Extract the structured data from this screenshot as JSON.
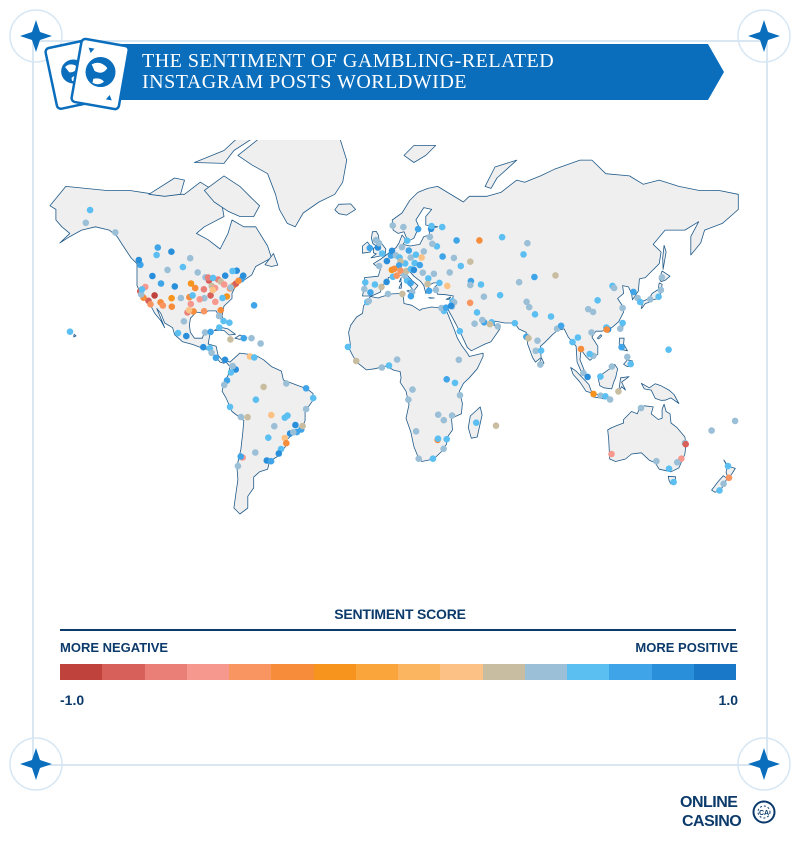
{
  "title": {
    "line1": "THE SENTIMENT OF GAMBLING-RELATED",
    "line2": "INSTAGRAM POSTS WORLDWIDE"
  },
  "legend": {
    "title": "SENTIMENT SCORE",
    "negative_label": "MORE NEGATIVE",
    "positive_label": "MORE POSITIVE",
    "min_label": "-1.0",
    "max_label": "1.0",
    "colors": [
      "#c0423d",
      "#d8605a",
      "#ea7f78",
      "#f7988f",
      "#f99560",
      "#f78c3a",
      "#f7941e",
      "#f9a53c",
      "#fbb560",
      "#fcc285",
      "#c8bda0",
      "#9bbfd6",
      "#5cbff2",
      "#3fa5e8",
      "#2a8fdb",
      "#1a78c9"
    ]
  },
  "colors": {
    "brand_blue": "#0a6ebd",
    "dark_blue": "#0b3a6b",
    "land": "#f0f0f0",
    "border": "#1f5a8a"
  },
  "logo": {
    "line1": "ONLINE",
    "line2": "CASINO",
    "badge": "CA"
  },
  "points": [
    [
      -122.4,
      37.8,
      -0.8
    ],
    [
      -118.2,
      34.1,
      -0.9
    ],
    [
      -117.2,
      32.7,
      -0.5
    ],
    [
      -115.1,
      36.2,
      -0.95
    ],
    [
      -112.1,
      33.5,
      -0.4
    ],
    [
      -104.9,
      39.7,
      0.8
    ],
    [
      -122.3,
      47.6,
      0.7
    ],
    [
      -123.1,
      49.3,
      0.9
    ],
    [
      -114.1,
      51.0,
      0.6
    ],
    [
      -113.5,
      53.5,
      0.7
    ],
    [
      -97.1,
      49.9,
      0.5
    ],
    [
      -106.6,
      52.1,
      0.8
    ],
    [
      -96.8,
      32.8,
      -0.6
    ],
    [
      -95.4,
      29.8,
      -0.3
    ],
    [
      -98.5,
      29.4,
      -0.7
    ],
    [
      -97.7,
      30.3,
      0.2
    ],
    [
      -90.1,
      29.9,
      -0.5
    ],
    [
      -84.4,
      33.7,
      -0.6
    ],
    [
      -80.2,
      25.8,
      0.6
    ],
    [
      -81.7,
      30.3,
      -0.3
    ],
    [
      -82.5,
      27.9,
      0.4
    ],
    [
      -86.8,
      36.2,
      -0.8
    ],
    [
      -90.0,
      35.1,
      0.5
    ],
    [
      -87.6,
      41.9,
      -0.9
    ],
    [
      -83.0,
      42.3,
      -0.7
    ],
    [
      -81.7,
      41.5,
      0.3
    ],
    [
      -79.9,
      40.4,
      -0.6
    ],
    [
      -75.2,
      40.0,
      -0.4
    ],
    [
      -74.0,
      40.7,
      -0.8
    ],
    [
      -71.1,
      42.4,
      0.7
    ],
    [
      -77.0,
      38.9,
      -0.5
    ],
    [
      -76.6,
      39.3,
      0.4
    ],
    [
      -78.6,
      35.8,
      -0.2
    ],
    [
      -80.8,
      35.2,
      0.6
    ],
    [
      -79.4,
      43.7,
      0.8
    ],
    [
      -73.6,
      45.5,
      0.9
    ],
    [
      -75.7,
      45.4,
      0.6
    ],
    [
      -93.3,
      44.9,
      0.5
    ],
    [
      -94.6,
      39.1,
      -0.4
    ],
    [
      -90.2,
      38.6,
      -0.7
    ],
    [
      -86.2,
      39.8,
      0.3
    ],
    [
      -84.5,
      39.1,
      -0.6
    ],
    [
      -85.7,
      38.3,
      0.2
    ],
    [
      -97.5,
      35.5,
      -0.3
    ],
    [
      -95.9,
      36.2,
      0.6
    ],
    [
      -101.8,
      35.2,
      0.4
    ],
    [
      -106.5,
      35.1,
      -0.2
    ],
    [
      -111.9,
      40.8,
      0.7
    ],
    [
      -116.2,
      43.6,
      0.8
    ],
    [
      -119.8,
      39.5,
      -0.6
    ],
    [
      -120.7,
      35.3,
      -0.3
    ],
    [
      -121.9,
      36.6,
      0.5
    ],
    [
      -121.5,
      38.6,
      0.6
    ],
    [
      -110.9,
      32.2,
      -0.5
    ],
    [
      -108.6,
      45.8,
      0.4
    ],
    [
      -100.8,
      46.8,
      0.6
    ],
    [
      -96.7,
      40.8,
      -0.2
    ],
    [
      -92.3,
      34.7,
      -0.6
    ],
    [
      -89.4,
      43.1,
      0.5
    ],
    [
      -88.0,
      43.0,
      -0.7
    ],
    [
      -85.6,
      42.9,
      0.6
    ],
    [
      -72.7,
      41.8,
      -0.3
    ],
    [
      -70.3,
      43.7,
      0.8
    ],
    [
      -64.8,
      32.3,
      0.7
    ],
    [
      -66.1,
      18.5,
      0.5
    ],
    [
      -77.3,
      25.1,
      0.6
    ],
    [
      -82.4,
      23.1,
      0.6
    ],
    [
      -76.8,
      18.0,
      0.3
    ],
    [
      -70.0,
      18.5,
      0.7
    ],
    [
      -61.5,
      16.2,
      0.4
    ],
    [
      -99.1,
      19.4,
      0.8
    ],
    [
      -103.3,
      20.7,
      0.6
    ],
    [
      -100.3,
      25.7,
      0.5
    ],
    [
      -106.4,
      31.7,
      -0.4
    ],
    [
      -89.6,
      21.0,
      0.5
    ],
    [
      -86.8,
      21.2,
      0.7
    ],
    [
      -90.5,
      14.6,
      0.8
    ],
    [
      -87.2,
      14.1,
      0.6
    ],
    [
      -84.1,
      9.9,
      0.7
    ],
    [
      -79.5,
      9.0,
      0.8
    ],
    [
      -86.3,
      12.1,
      0.5
    ],
    [
      -74.1,
      4.7,
      0.8
    ],
    [
      -75.6,
      6.2,
      0.4
    ],
    [
      -76.5,
      3.4,
      0.6
    ],
    [
      -66.9,
      10.5,
      0.2
    ],
    [
      -64.7,
      10.1,
      0.6
    ],
    [
      -78.5,
      -0.2,
      0.7
    ],
    [
      -79.9,
      -2.2,
      0.4
    ],
    [
      -77.0,
      -12.0,
      0.6
    ],
    [
      -71.5,
      -16.4,
      0.5
    ],
    [
      -68.1,
      -16.5,
      0.3
    ],
    [
      -57.6,
      -25.3,
      0.6
    ],
    [
      -70.6,
      -33.4,
      -0.6
    ],
    [
      -71.6,
      -33.0,
      0.7
    ],
    [
      -73.0,
      -36.8,
      0.5
    ],
    [
      -58.4,
      -34.6,
      0.8
    ],
    [
      -64.2,
      -31.4,
      0.4
    ],
    [
      -56.2,
      -34.9,
      0.7
    ],
    [
      -47.9,
      -15.8,
      0.6
    ],
    [
      -46.6,
      -23.5,
      0.8
    ],
    [
      -43.2,
      -22.9,
      0.7
    ],
    [
      -49.3,
      -25.4,
      0.2
    ],
    [
      -51.2,
      -30.0,
      0.6
    ],
    [
      -48.5,
      -27.6,
      -0.4
    ],
    [
      -43.9,
      -19.9,
      0.8
    ],
    [
      -38.5,
      -12.9,
      0.5
    ],
    [
      -34.9,
      -8.1,
      0.6
    ],
    [
      -38.5,
      -3.7,
      0.7
    ],
    [
      -48.5,
      -1.5,
      0.4
    ],
    [
      -60.0,
      -3.1,
      0.3
    ],
    [
      -49.3,
      -16.7,
      0.6
    ],
    [
      -54.6,
      -20.4,
      0.5
    ],
    [
      -56.1,
      -15.6,
      0.2
    ],
    [
      -63.9,
      -8.8,
      0.6
    ],
    [
      -41.0,
      -21.8,
      0.7
    ],
    [
      -45.0,
      -23.0,
      0.4
    ],
    [
      -52.3,
      -31.8,
      0.8
    ],
    [
      -40.3,
      -20.3,
      0.3
    ],
    [
      -0.1,
      51.5,
      0.6
    ],
    [
      -2.2,
      53.5,
      0.8
    ],
    [
      -3.2,
      55.9,
      0.5
    ],
    [
      -6.3,
      53.3,
      0.7
    ],
    [
      -1.6,
      54.9,
      0.4
    ],
    [
      -3.7,
      40.4,
      0.6
    ],
    [
      2.2,
      41.4,
      0.8
    ],
    [
      -0.4,
      39.5,
      0.3
    ],
    [
      -5.98,
      37.4,
      0.7
    ],
    [
      -9.1,
      38.7,
      0.5
    ],
    [
      -8.6,
      41.2,
      0.6
    ],
    [
      2.35,
      48.9,
      0.8
    ],
    [
      4.8,
      45.8,
      -0.2
    ],
    [
      5.4,
      43.3,
      0.6
    ],
    [
      -1.6,
      47.2,
      0.5
    ],
    [
      7.3,
      43.7,
      -0.5
    ],
    [
      4.4,
      50.8,
      0.7
    ],
    [
      4.9,
      52.4,
      0.8
    ],
    [
      6.9,
      50.9,
      0.4
    ],
    [
      8.7,
      50.1,
      0.6
    ],
    [
      13.4,
      52.5,
      0.7
    ],
    [
      10.0,
      53.6,
      0.5
    ],
    [
      11.6,
      48.1,
      0.6
    ],
    [
      9.2,
      48.8,
      0.3
    ],
    [
      8.5,
      47.4,
      0.7
    ],
    [
      6.1,
      46.2,
      -0.3
    ],
    [
      16.4,
      48.2,
      0.6
    ],
    [
      14.4,
      50.1,
      0.5
    ],
    [
      19.0,
      47.5,
      0.7
    ],
    [
      21.0,
      52.2,
      0.4
    ],
    [
      17.0,
      51.1,
      0.6
    ],
    [
      19.9,
      50.1,
      0.2
    ],
    [
      12.5,
      41.9,
      0.6
    ],
    [
      9.2,
      45.5,
      -0.5
    ],
    [
      11.3,
      43.8,
      0.4
    ],
    [
      14.3,
      40.9,
      0.7
    ],
    [
      15.1,
      37.5,
      0.5
    ],
    [
      12.3,
      45.4,
      0.3
    ],
    [
      14.5,
      46.1,
      0.6
    ],
    [
      16.0,
      45.8,
      0.8
    ],
    [
      20.5,
      44.8,
      0.5
    ],
    [
      23.3,
      42.7,
      0.6
    ],
    [
      26.1,
      44.4,
      0.4
    ],
    [
      23.7,
      38.0,
      0.7
    ],
    [
      22.9,
      40.6,
      0.3
    ],
    [
      28.9,
      41.0,
      0.6
    ],
    [
      32.9,
      39.9,
      0.2
    ],
    [
      27.1,
      38.4,
      0.5
    ],
    [
      30.5,
      50.5,
      0.7
    ],
    [
      27.6,
      53.9,
      0.6
    ],
    [
      24.1,
      56.9,
      0.4
    ],
    [
      25.3,
      54.7,
      0.5
    ],
    [
      24.7,
      59.4,
      0.8
    ],
    [
      24.9,
      60.2,
      0.6
    ],
    [
      18.1,
      59.3,
      0.7
    ],
    [
      10.7,
      59.9,
      0.4
    ],
    [
      12.6,
      55.7,
      0.6
    ],
    [
      5.3,
      60.4,
      0.5
    ],
    [
      37.6,
      55.8,
      0.7
    ],
    [
      30.3,
      59.9,
      0.6
    ],
    [
      49.1,
      55.8,
      -0.3
    ],
    [
      60.6,
      56.8,
      0.6
    ],
    [
      73.4,
      54.9,
      0.4
    ],
    [
      44.5,
      48.7,
      0.3
    ],
    [
      39.7,
      47.2,
      0.6
    ],
    [
      36.2,
      50.0,
      0.5
    ],
    [
      34.1,
      44.9,
      0.4
    ],
    [
      44.8,
      41.7,
      0.7
    ],
    [
      44.5,
      40.2,
      0.5
    ],
    [
      49.9,
      40.4,
      0.6
    ],
    [
      14.5,
      35.9,
      0.7
    ],
    [
      2.9,
      36.8,
      0.5
    ],
    [
      10.2,
      36.8,
      0.3
    ],
    [
      -7.6,
      33.6,
      0.6
    ],
    [
      -6.8,
      34.0,
      0.4
    ],
    [
      31.2,
      30.0,
      0.6
    ],
    [
      29.9,
      31.2,
      0.5
    ],
    [
      32.3,
      31.3,
      0.7
    ],
    [
      35.5,
      33.9,
      0.6
    ],
    [
      36.3,
      33.5,
      0.4
    ],
    [
      35.2,
      31.8,
      0.5
    ],
    [
      34.8,
      32.1,
      0.8
    ],
    [
      39.2,
      21.5,
      0.6
    ],
    [
      46.7,
      24.7,
      0.5
    ],
    [
      51.5,
      25.3,
      0.7
    ],
    [
      55.3,
      25.3,
      0.6
    ],
    [
      54.4,
      24.5,
      0.3
    ],
    [
      58.4,
      23.6,
      0.5
    ],
    [
      50.6,
      26.2,
      0.4
    ],
    [
      47.9,
      29.4,
      0.6
    ],
    [
      44.4,
      33.3,
      -0.5
    ],
    [
      51.4,
      35.7,
      0.4
    ],
    [
      59.6,
      36.3,
      0.6
    ],
    [
      69.2,
      41.3,
      0.5
    ],
    [
      76.9,
      43.2,
      0.7
    ],
    [
      71.4,
      51.2,
      0.6
    ],
    [
      67.0,
      24.9,
      0.6
    ],
    [
      74.3,
      31.5,
      0.5
    ],
    [
      73.0,
      33.7,
      0.4
    ],
    [
      77.2,
      28.6,
      0.6
    ],
    [
      72.9,
      19.1,
      0.7
    ],
    [
      73.9,
      18.5,
      0.3
    ],
    [
      77.6,
      13.0,
      0.5
    ],
    [
      80.3,
      13.1,
      0.6
    ],
    [
      78.5,
      17.4,
      0.4
    ],
    [
      88.4,
      22.6,
      0.5
    ],
    [
      85.3,
      27.7,
      0.6
    ],
    [
      90.4,
      23.8,
      0.7
    ],
    [
      79.9,
      6.9,
      0.5
    ],
    [
      96.2,
      16.8,
      0.6
    ],
    [
      100.5,
      13.8,
      -0.4
    ],
    [
      98.9,
      18.8,
      0.6
    ],
    [
      105.8,
      21.0,
      0.5
    ],
    [
      106.7,
      10.8,
      0.4
    ],
    [
      104.9,
      11.6,
      0.6
    ],
    [
      101.7,
      3.1,
      0.5
    ],
    [
      103.8,
      1.4,
      0.8
    ],
    [
      106.8,
      -6.2,
      -0.2
    ],
    [
      110.4,
      -7.0,
      0.4
    ],
    [
      112.8,
      -7.3,
      0.6
    ],
    [
      115.2,
      -8.7,
      0.5
    ],
    [
      119.4,
      -5.1,
      0.3
    ],
    [
      110.3,
      1.5,
      0.6
    ],
    [
      116.1,
      5.98,
      0.4
    ],
    [
      121.0,
      14.6,
      0.7
    ],
    [
      123.9,
      10.3,
      0.5
    ],
    [
      125.6,
      7.1,
      0.6
    ],
    [
      121.5,
      25.0,
      0.6
    ],
    [
      120.3,
      22.6,
      0.5
    ],
    [
      114.2,
      22.3,
      0.8
    ],
    [
      113.3,
      23.1,
      0.6
    ],
    [
      113.5,
      22.2,
      -0.3
    ],
    [
      121.5,
      31.2,
      0.5
    ],
    [
      116.4,
      39.9,
      0.6
    ],
    [
      117.2,
      39.1,
      0.4
    ],
    [
      126.98,
      37.6,
      0.7
    ],
    [
      129.1,
      35.2,
      0.5
    ],
    [
      139.7,
      35.7,
      0.6
    ],
    [
      135.5,
      34.7,
      0.5
    ],
    [
      130.4,
      33.6,
      0.6
    ],
    [
      141.4,
      43.1,
      0.4
    ],
    [
      140.9,
      38.3,
      0.5
    ],
    [
      104.1,
      30.7,
      0.4
    ],
    [
      106.6,
      29.6,
      0.5
    ],
    [
      108.9,
      34.3,
      0.6
    ],
    [
      87.6,
      43.8,
      0.3
    ],
    [
      144.8,
      13.5,
      0.6
    ],
    [
      151.2,
      -33.9,
      -0.6
    ],
    [
      153.0,
      -27.5,
      0.5
    ],
    [
      153.4,
      -28.0,
      -0.8
    ],
    [
      145.0,
      -37.8,
      0.6
    ],
    [
      138.6,
      -34.9,
      0.5
    ],
    [
      149.1,
      -35.3,
      0.4
    ],
    [
      147.3,
      -42.9,
      0.6
    ],
    [
      115.9,
      -32.0,
      -0.6
    ],
    [
      130.8,
      -12.5,
      0.5
    ],
    [
      174.8,
      -36.8,
      0.6
    ],
    [
      175.3,
      -41.3,
      -0.5
    ],
    [
      172.6,
      -43.5,
      0.4
    ],
    [
      170.5,
      -45.9,
      0.6
    ],
    [
      178.4,
      -18.1,
      0.5
    ],
    [
      166.5,
      -22.3,
      0.4
    ],
    [
      3.4,
      6.5,
      0.6
    ],
    [
      7.5,
      9.1,
      0.5
    ],
    [
      -0.2,
      5.6,
      0.4
    ],
    [
      -17.4,
      14.7,
      0.6
    ],
    [
      -13.2,
      8.5,
      0.3
    ],
    [
      36.8,
      -1.3,
      0.6
    ],
    [
      39.3,
      -6.8,
      0.5
    ],
    [
      32.6,
      0.3,
      0.7
    ],
    [
      38.7,
      9.0,
      0.4
    ],
    [
      15.3,
      -4.3,
      0.5
    ],
    [
      13.2,
      -8.8,
      0.4
    ],
    [
      28.0,
      -26.2,
      -0.3
    ],
    [
      28.2,
      -25.7,
      0.6
    ],
    [
      31.0,
      -29.9,
      0.5
    ],
    [
      18.4,
      -33.9,
      0.4
    ],
    [
      25.6,
      -33.9,
      0.6
    ],
    [
      31.1,
      -17.8,
      0.5
    ],
    [
      28.3,
      -15.4,
      0.4
    ],
    [
      47.5,
      -18.9,
      0.6
    ],
    [
      57.5,
      -20.2,
      0.3
    ],
    [
      35.3,
      -15.8,
      0.5
    ],
    [
      32.6,
      -25.9,
      0.6
    ],
    [
      17.1,
      -22.6,
      0.5
    ],
    [
      -157.9,
      21.3,
      0.6
    ],
    [
      -149.9,
      61.2,
      0.5
    ],
    [
      -135.0,
      58.3,
      0.4
    ],
    [
      -147.7,
      64.8,
      0.6
    ]
  ]
}
